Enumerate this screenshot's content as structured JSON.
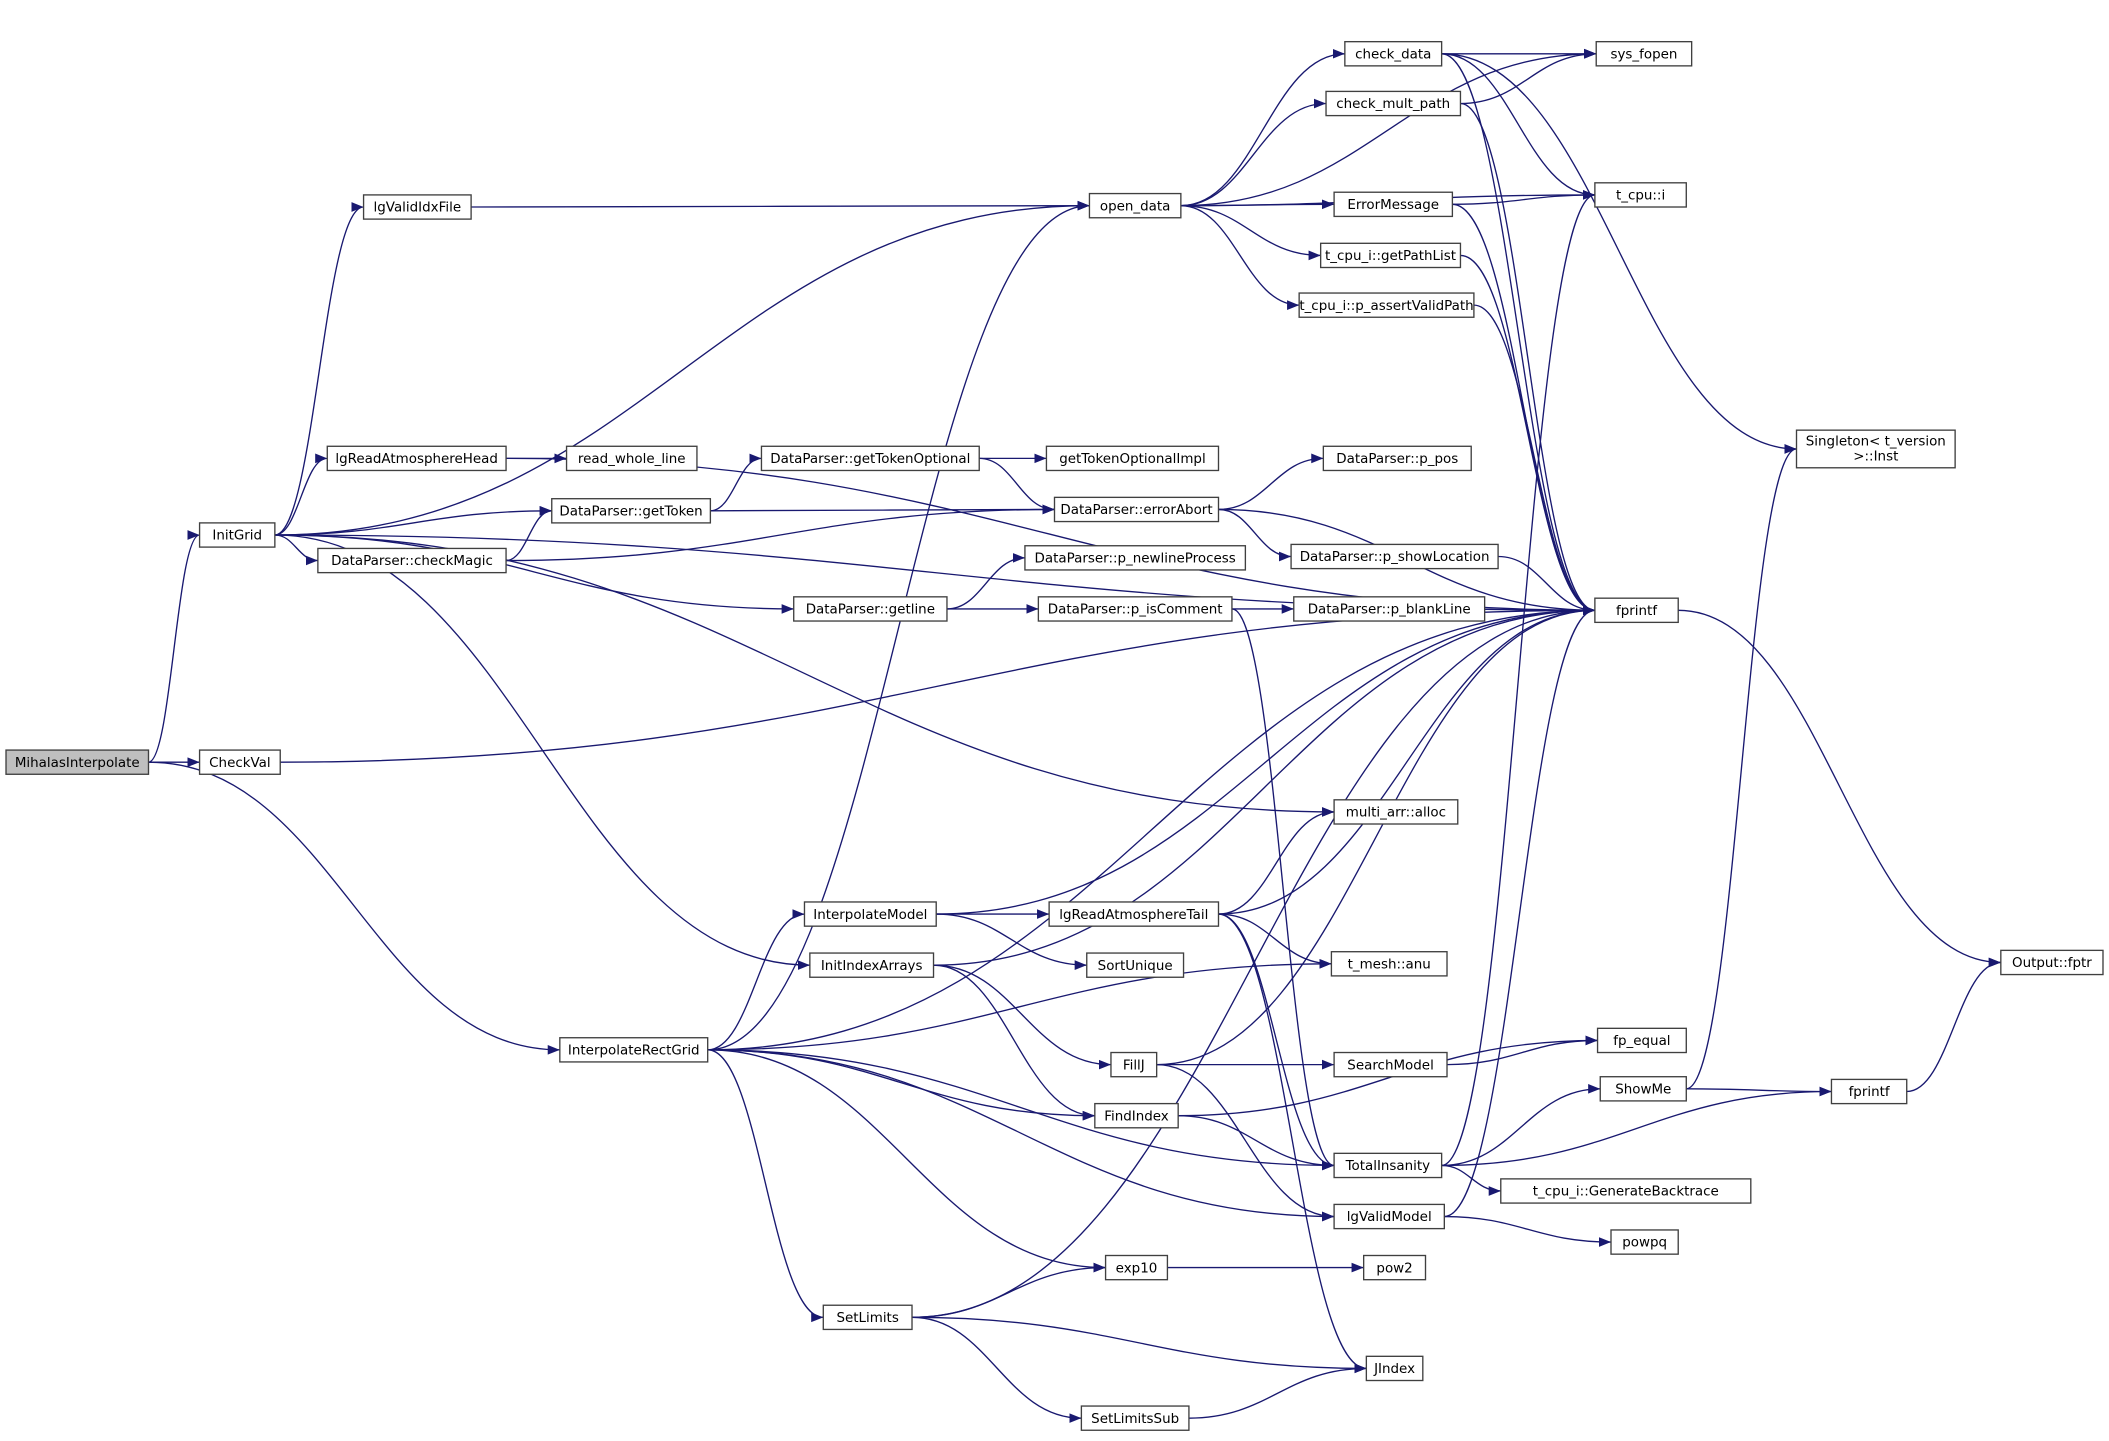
{
  "diagram": {
    "type": "call-graph",
    "colors": {
      "edge": "#191970",
      "root_fill": "#bfbfbf",
      "node_border": "#404040",
      "truncated_border": "#ff0000"
    },
    "nodes": [
      {
        "id": "mihalas",
        "label": "MihalasInterpolate",
        "root": true
      },
      {
        "id": "checkval",
        "label": "CheckVal"
      },
      {
        "id": "initgrid",
        "label": "InitGrid"
      },
      {
        "id": "irg",
        "label": "InterpolateRectGrid"
      },
      {
        "id": "lgvalididx",
        "label": "lgValidIdxFile"
      },
      {
        "id": "lgreadhead",
        "label": "lgReadAtmosphereHead"
      },
      {
        "id": "readwhole",
        "label": "read_whole_line"
      },
      {
        "id": "gettoken",
        "label": "DataParser::getToken"
      },
      {
        "id": "checkmagic",
        "label": "DataParser::checkMagic"
      },
      {
        "id": "getline",
        "label": "DataParser::getline"
      },
      {
        "id": "opendata",
        "label": "open_data"
      },
      {
        "id": "checkdata",
        "label": "check_data",
        "truncated": true
      },
      {
        "id": "checkmult",
        "label": "check_mult_path",
        "truncated": true
      },
      {
        "id": "errmsg",
        "label": "ErrorMessage",
        "truncated": true
      },
      {
        "id": "getpathlist",
        "label": "t_cpu_i::getPathList"
      },
      {
        "id": "assertvalid",
        "label": "t_cpu_i::p_assertValidPath"
      },
      {
        "id": "sysfopen",
        "label": "sys_fopen"
      },
      {
        "id": "tcpui",
        "label": "t_cpu::i"
      },
      {
        "id": "singleton",
        "label": "Singleton< t_version",
        "label2": ">::Inst"
      },
      {
        "id": "gettokopt",
        "label": "DataParser::getTokenOptional"
      },
      {
        "id": "gettokoptimpl",
        "label": "getTokenOptionalImpl"
      },
      {
        "id": "errabort",
        "label": "DataParser::errorAbort"
      },
      {
        "id": "ppos",
        "label": "DataParser::p_pos"
      },
      {
        "id": "pshowloc",
        "label": "DataParser::p_showLocation"
      },
      {
        "id": "pnewline",
        "label": "DataParser::p_newlineProcess"
      },
      {
        "id": "piscomment",
        "label": "DataParser::p_isComment"
      },
      {
        "id": "pblank",
        "label": "DataParser::p_blankLine"
      },
      {
        "id": "fprintf",
        "label": "fprintf"
      },
      {
        "id": "multiarr",
        "label": "multi_arr::alloc"
      },
      {
        "id": "interpmodel",
        "label": "InterpolateModel"
      },
      {
        "id": "initidx",
        "label": "InitIndexArrays"
      },
      {
        "id": "lgreadtail",
        "label": "lgReadAtmosphereTail",
        "truncated": true
      },
      {
        "id": "sortunique",
        "label": "SortUnique"
      },
      {
        "id": "tmeshanu",
        "label": "t_mesh::anu"
      },
      {
        "id": "fillj",
        "label": "FillJ"
      },
      {
        "id": "findindex",
        "label": "FindIndex"
      },
      {
        "id": "searchmodel",
        "label": "SearchModel"
      },
      {
        "id": "fpequal",
        "label": "fp_equal",
        "truncated": true
      },
      {
        "id": "showme",
        "label": "ShowMe",
        "truncated": true
      },
      {
        "id": "fprintf2",
        "label": "fprintf"
      },
      {
        "id": "fptr",
        "label": "Output::fptr"
      },
      {
        "id": "totalins",
        "label": "TotalInsanity"
      },
      {
        "id": "backtrace",
        "label": "t_cpu_i::GenerateBacktrace"
      },
      {
        "id": "lgvalidmodel",
        "label": "lgValidModel"
      },
      {
        "id": "powpq",
        "label": "powpq",
        "truncated": true
      },
      {
        "id": "exp10",
        "label": "exp10"
      },
      {
        "id": "pow2",
        "label": "pow2"
      },
      {
        "id": "setlimits",
        "label": "SetLimits"
      },
      {
        "id": "jindex",
        "label": "JIndex"
      },
      {
        "id": "setlimitssub",
        "label": "SetLimitsSub"
      }
    ],
    "edges": [
      [
        "mihalas",
        "initgrid"
      ],
      [
        "mihalas",
        "checkval"
      ],
      [
        "mihalas",
        "irg"
      ],
      [
        "checkval",
        "fprintf"
      ],
      [
        "initgrid",
        "lgvalididx"
      ],
      [
        "initgrid",
        "opendata"
      ],
      [
        "initgrid",
        "fprintf"
      ],
      [
        "initgrid",
        "lgreadhead"
      ],
      [
        "initgrid",
        "gettoken"
      ],
      [
        "initgrid",
        "checkmagic"
      ],
      [
        "initgrid",
        "getline"
      ],
      [
        "initgrid",
        "multiarr"
      ],
      [
        "initgrid",
        "initidx"
      ],
      [
        "lgvalididx",
        "opendata"
      ],
      [
        "lgreadhead",
        "readwhole"
      ],
      [
        "lgreadhead",
        "fprintf"
      ],
      [
        "gettoken",
        "gettokopt"
      ],
      [
        "gettoken",
        "errabort"
      ],
      [
        "checkmagic",
        "gettoken"
      ],
      [
        "checkmagic",
        "errabort"
      ],
      [
        "getline",
        "pnewline"
      ],
      [
        "getline",
        "piscomment"
      ],
      [
        "gettokopt",
        "gettokoptimpl"
      ],
      [
        "gettokopt",
        "errabort"
      ],
      [
        "errabort",
        "ppos"
      ],
      [
        "errabort",
        "pshowloc"
      ],
      [
        "errabort",
        "fprintf"
      ],
      [
        "pshowloc",
        "fprintf"
      ],
      [
        "piscomment",
        "pblank"
      ],
      [
        "piscomment",
        "totalins"
      ],
      [
        "opendata",
        "sysfopen"
      ],
      [
        "opendata",
        "checkdata"
      ],
      [
        "opendata",
        "checkmult"
      ],
      [
        "opendata",
        "tcpui"
      ],
      [
        "opendata",
        "errmsg"
      ],
      [
        "opendata",
        "getpathlist"
      ],
      [
        "opendata",
        "assertvalid"
      ],
      [
        "checkdata",
        "sysfopen"
      ],
      [
        "checkdata",
        "tcpui"
      ],
      [
        "checkdata",
        "fprintf"
      ],
      [
        "checkdata",
        "singleton"
      ],
      [
        "checkmult",
        "sysfopen"
      ],
      [
        "checkmult",
        "fprintf"
      ],
      [
        "errmsg",
        "tcpui"
      ],
      [
        "errmsg",
        "fprintf"
      ],
      [
        "getpathlist",
        "fprintf"
      ],
      [
        "assertvalid",
        "fprintf"
      ],
      [
        "fprintf",
        "fptr"
      ],
      [
        "fprintf2",
        "fptr"
      ],
      [
        "irg",
        "opendata"
      ],
      [
        "irg",
        "fprintf"
      ],
      [
        "irg",
        "interpmodel"
      ],
      [
        "irg",
        "tmeshanu"
      ],
      [
        "irg",
        "findindex"
      ],
      [
        "irg",
        "totalins"
      ],
      [
        "irg",
        "lgvalidmodel"
      ],
      [
        "irg",
        "exp10"
      ],
      [
        "irg",
        "setlimits"
      ],
      [
        "interpmodel",
        "lgreadtail"
      ],
      [
        "interpmodel",
        "sortunique"
      ],
      [
        "interpmodel",
        "fprintf"
      ],
      [
        "initidx",
        "fprintf"
      ],
      [
        "initidx",
        "fillj"
      ],
      [
        "initidx",
        "findindex"
      ],
      [
        "lgreadtail",
        "multiarr"
      ],
      [
        "lgreadtail",
        "tmeshanu"
      ],
      [
        "lgreadtail",
        "fprintf"
      ],
      [
        "lgreadtail",
        "totalins"
      ],
      [
        "lgreadtail",
        "jindex"
      ],
      [
        "fillj",
        "searchmodel"
      ],
      [
        "fillj",
        "fprintf"
      ],
      [
        "fillj",
        "lgvalidmodel"
      ],
      [
        "searchmodel",
        "fpequal"
      ],
      [
        "findindex",
        "fpequal"
      ],
      [
        "findindex",
        "totalins"
      ],
      [
        "totalins",
        "tcpui"
      ],
      [
        "totalins",
        "showme"
      ],
      [
        "totalins",
        "fprintf2"
      ],
      [
        "totalins",
        "backtrace"
      ],
      [
        "showme",
        "singleton"
      ],
      [
        "showme",
        "fprintf2"
      ],
      [
        "lgvalidmodel",
        "fprintf"
      ],
      [
        "lgvalidmodel",
        "powpq"
      ],
      [
        "exp10",
        "pow2"
      ],
      [
        "setlimits",
        "exp10"
      ],
      [
        "setlimits",
        "jindex"
      ],
      [
        "setlimits",
        "setlimitssub"
      ],
      [
        "setlimits",
        "fprintf"
      ],
      [
        "setlimitssub",
        "jindex"
      ]
    ]
  }
}
